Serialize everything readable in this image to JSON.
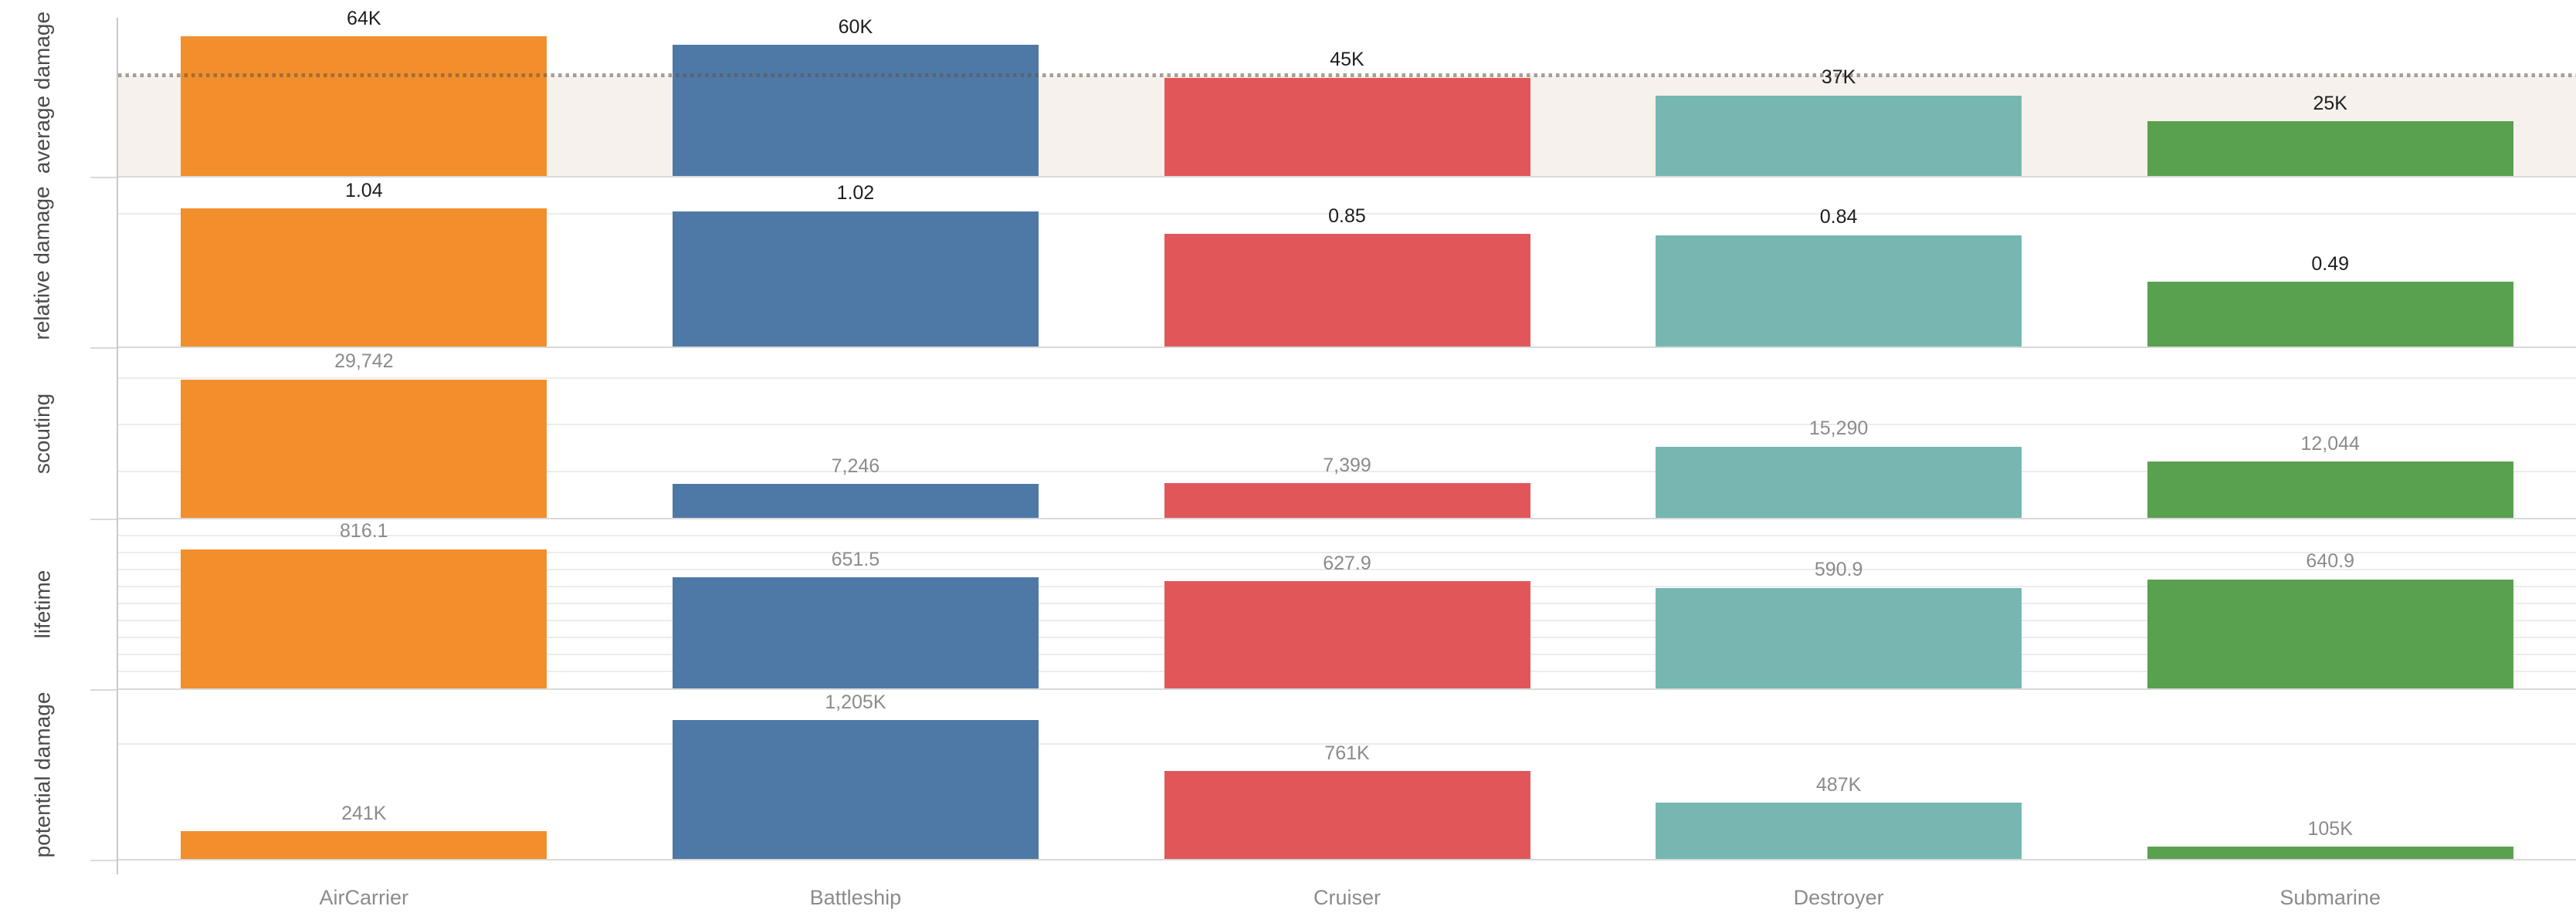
{
  "chart_data": {
    "type": "bar",
    "title": "",
    "layout": "trellis-rows-shared-category-axis",
    "legend": "none",
    "grid": "horizontal-light",
    "categories": [
      "AirCarrier",
      "Battleship",
      "Cruiser",
      "Destroyer",
      "Submarine"
    ],
    "category_colors": [
      "#f28e2b",
      "#4e79a7",
      "#e15759",
      "#76b7b2",
      "#59a14f"
    ],
    "axis_label_color": "#8b8b8b",
    "row_label_color": "#4b4b4b",
    "rows": [
      {
        "label": "average damage",
        "values": [
          64000,
          60000,
          45000,
          37000,
          25000
        ],
        "value_labels": [
          "64K",
          "60K",
          "45K",
          "37K",
          "25K"
        ],
        "axis_max": 78200,
        "gridlines": [],
        "value_label_style": "dark",
        "reference_line": {
          "value": 46200,
          "style": "dotted",
          "color": "#9b9288"
        },
        "reference_band": {
          "from": 0,
          "to": 46200,
          "color": "#f6f1ec"
        }
      },
      {
        "label": "relative damage",
        "values": [
          1.04,
          1.02,
          0.85,
          0.84,
          0.49
        ],
        "value_labels": [
          "1.04",
          "1.02",
          "0.85",
          "0.84",
          "0.49"
        ],
        "axis_max": 1.285,
        "gridlines": [
          1.0
        ],
        "value_label_style": "dark"
      },
      {
        "label": "scouting",
        "values": [
          29742,
          7246,
          7399,
          15290,
          12044
        ],
        "value_labels": [
          "29,742",
          "7,246",
          "7,399",
          "15,290",
          "12,044"
        ],
        "axis_max": 36830,
        "gridlines": [
          10000,
          20000,
          30000
        ],
        "value_label_style": "gray"
      },
      {
        "label": "lifetime",
        "values": [
          816.1,
          651.5,
          627.9,
          590.9,
          640.9
        ],
        "value_labels": [
          "816.1",
          "651.5",
          "627.9",
          "590.9",
          "640.9"
        ],
        "axis_max": 1004,
        "gridlines": [
          100,
          200,
          300,
          400,
          500,
          600,
          700,
          800,
          900
        ],
        "value_label_style": "gray"
      },
      {
        "label": "potential damage",
        "values": [
          241000,
          1205000,
          761000,
          487000,
          105000
        ],
        "value_labels": [
          "241K",
          "1,205K",
          "761K",
          "487K",
          "105K"
        ],
        "axis_max": 1483000,
        "gridlines": [
          1000000
        ],
        "value_label_style": "gray"
      }
    ]
  }
}
